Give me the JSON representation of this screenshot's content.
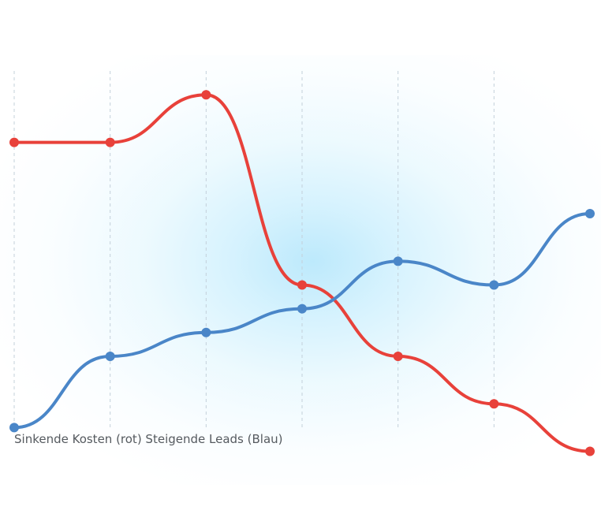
{
  "chart_data": {
    "type": "line",
    "title": "",
    "xlabel": "",
    "ylabel": "",
    "grid": "vertical dashed",
    "ylim": [
      0,
      10
    ],
    "x": [
      1,
      2,
      3,
      4,
      5,
      6,
      7
    ],
    "series": [
      {
        "color": "#e8413a",
        "values": [
          8.0,
          8.0,
          9.0,
          5.0,
          3.5,
          2.5,
          1.5
        ]
      },
      {
        "color": "#4a86c8",
        "values": [
          2.0,
          3.5,
          4.0,
          4.5,
          5.5,
          5.0,
          6.5
        ]
      }
    ],
    "caption": "Sinkende Kosten (rot) Steigende Leads (Blau)"
  },
  "colors": {
    "grid": "#c3d0da",
    "background_glow": "#c5ebfc"
  }
}
